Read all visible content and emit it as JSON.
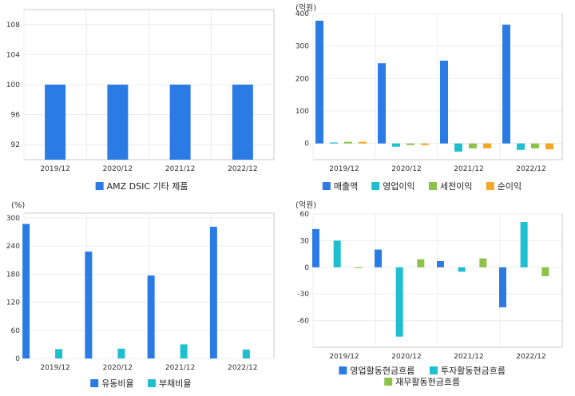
{
  "chart_data": [
    {
      "type": "bar",
      "unit_label": "",
      "categories": [
        "2019/12",
        "2020/12",
        "2021/12",
        "2022/12"
      ],
      "ylim": [
        90,
        110
      ],
      "yticks": [
        92,
        96,
        100,
        104,
        108
      ],
      "grid": true,
      "legend_position": "bottom",
      "series": [
        {
          "name": "AMZ DSIC 기타 제품",
          "color": "#2b7be4",
          "values": [
            100,
            100,
            100,
            100
          ]
        }
      ]
    },
    {
      "type": "bar",
      "unit_label": "(억원)",
      "categories": [
        "2019/12",
        "2020/12",
        "2021/12",
        "2022/12"
      ],
      "ylim": [
        -50,
        400
      ],
      "yticks": [
        0,
        100,
        200,
        300,
        400
      ],
      "grid": true,
      "legend_position": "bottom",
      "series": [
        {
          "name": "매출액",
          "color": "#2b7be4",
          "values": [
            378,
            247,
            255,
            366
          ]
        },
        {
          "name": "영업이익",
          "color": "#1ebfcf",
          "values": [
            3,
            -10,
            -25,
            -20
          ]
        },
        {
          "name": "세전이익",
          "color": "#8bc34a",
          "values": [
            5,
            -5,
            -15,
            -15
          ]
        },
        {
          "name": "순이익",
          "color": "#f5a623",
          "values": [
            5,
            -5,
            -15,
            -18
          ]
        }
      ]
    },
    {
      "type": "bar",
      "unit_label": "(%)",
      "categories": [
        "2019/12",
        "2020/12",
        "2021/12",
        "2022/12"
      ],
      "ylim": [
        0,
        310
      ],
      "yticks": [
        0,
        60,
        120,
        180,
        240,
        300
      ],
      "grid": true,
      "legend_position": "bottom",
      "series": [
        {
          "name": "유동비율",
          "color": "#2b7be4",
          "values": [
            287,
            228,
            177,
            281
          ]
        },
        {
          "name": "부채비율",
          "color": "#1ebfcf",
          "values": [
            20,
            21,
            30,
            19
          ]
        }
      ]
    },
    {
      "type": "bar",
      "unit_label": "(억원)",
      "categories": [
        "2019/12",
        "2020/12",
        "2021/12",
        "2022/12"
      ],
      "ylim": [
        -90,
        60
      ],
      "yticks": [
        -60,
        -30,
        0,
        30,
        60
      ],
      "grid": true,
      "legend_position": "bottom",
      "series": [
        {
          "name": "영업활동현금흐름",
          "color": "#2b7be4",
          "values": [
            43,
            20,
            7,
            -45
          ]
        },
        {
          "name": "투자활동현금흐름",
          "color": "#1ebfcf",
          "values": [
            30,
            -78,
            -5,
            51
          ]
        },
        {
          "name": "재무활동현금흐름",
          "color": "#8bc34a",
          "values": [
            -1,
            9,
            10,
            -10
          ]
        }
      ]
    }
  ]
}
